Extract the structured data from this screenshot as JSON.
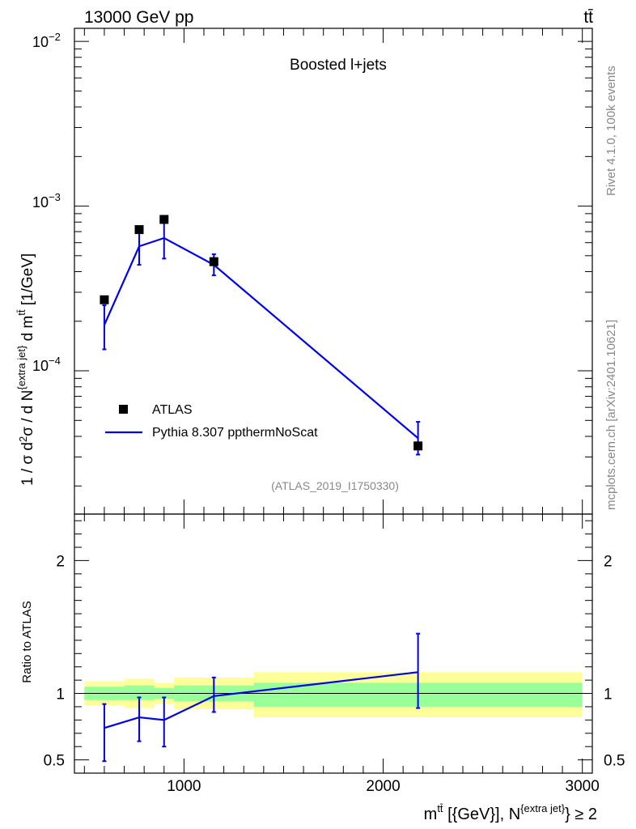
{
  "header": {
    "energy": "13000 GeV pp",
    "process": "tt̄"
  },
  "side": {
    "rivet": "Rivet 4.1.0,  100k events",
    "source": "mcplots.cern.ch [arXiv:2401.10621]"
  },
  "colors": {
    "atlas": "#000000",
    "pythia": "#0000ee",
    "band_inner": "#99ff99",
    "band_outer": "#ffff99"
  },
  "chart_data": [
    {
      "type": "scatter",
      "title": "Boosted l+jets",
      "analysis": "(ATLAS_2019_I1750330)",
      "ylabel": "1 / σ d²σ / d N^{extra jet} d m^{tt̄} [1/GeV]",
      "yscale": "log",
      "ylim": [
        1.35e-05,
        0.012
      ],
      "xlim": [
        450,
        3050
      ],
      "ytick_labels": [
        "10^-2",
        "10^-3",
        "10^-4"
      ],
      "legend": {
        "position": "lower-left",
        "entries": [
          "ATLAS",
          "Pythia 8.307 ppthermNoScat"
        ]
      },
      "series": [
        {
          "name": "ATLAS",
          "x": [
            600,
            775,
            900,
            1150,
            2175
          ],
          "values": [
            0.00027,
            0.00072,
            0.00083,
            0.00046,
            3.5e-05
          ]
        },
        {
          "name": "Pythia 8.307 ppthermNoScat",
          "x": [
            600,
            775,
            900,
            1150,
            2175
          ],
          "values": [
            0.00019,
            0.00057,
            0.00064,
            0.00044,
            3.9e-05
          ],
          "err_low": [
            0.000135,
            0.00044,
            0.00048,
            0.00038,
            3.1e-05
          ],
          "err_high": [
            0.00025,
            0.00072,
            0.00083,
            0.00051,
            4.9e-05
          ]
        }
      ]
    },
    {
      "type": "line",
      "ylabel": "Ratio to ATLAS",
      "xlabel": "m^{tt̄} [{GeV}], N^{extra jet} ≥ 2",
      "ylim": [
        0.4,
        2.35
      ],
      "xlim": [
        450,
        3050
      ],
      "x_ticks": [
        1000,
        2000,
        3000
      ],
      "x_tick_labels": [
        "1000",
        "2000",
        "3000"
      ],
      "y_ticks": [
        0.5,
        1,
        2
      ],
      "y_tick_labels": [
        "0.5",
        "1",
        "2"
      ],
      "bands": [
        {
          "xlow": 500,
          "xhigh": 700,
          "in_low": 0.95,
          "in_high": 1.05,
          "out_low": 0.91,
          "out_high": 1.09
        },
        {
          "xlow": 700,
          "xhigh": 850,
          "in_low": 0.95,
          "in_high": 1.06,
          "out_low": 0.89,
          "out_high": 1.11
        },
        {
          "xlow": 850,
          "xhigh": 950,
          "in_low": 0.96,
          "in_high": 1.04,
          "out_low": 0.92,
          "out_high": 1.08
        },
        {
          "xlow": 950,
          "xhigh": 1350,
          "in_low": 0.94,
          "in_high": 1.06,
          "out_low": 0.88,
          "out_high": 1.12
        },
        {
          "xlow": 1350,
          "xhigh": 3000,
          "in_low": 0.9,
          "in_high": 1.08,
          "out_low": 0.82,
          "out_high": 1.16
        }
      ],
      "series": [
        {
          "name": "Pythia 8.307 ppthermNoScat",
          "x": [
            600,
            775,
            900,
            1150,
            2175
          ],
          "values": [
            0.74,
            0.82,
            0.8,
            0.98,
            1.16
          ],
          "err_low": [
            0.49,
            0.64,
            0.6,
            0.86,
            0.89
          ],
          "err_high": [
            0.92,
            0.97,
            0.97,
            1.12,
            1.45
          ]
        }
      ]
    }
  ]
}
